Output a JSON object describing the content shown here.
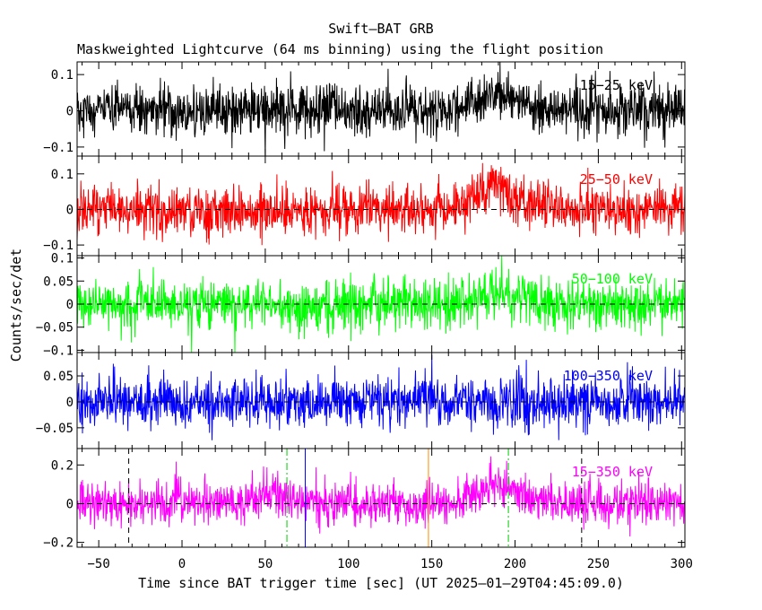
{
  "title": "Swift–BAT GRB",
  "subtitle": "Maskweighted Lightcurve (64 ms binning) using the flight position",
  "chart_data": {
    "type": "line",
    "xlabel": "Time since BAT trigger time [sec] (UT 2025–01–29T04:45:09.0)",
    "ylabel": "Counts/sec/det",
    "xlim": [
      -63,
      302
    ],
    "x_ticks": [
      {
        "v": -50,
        "label": "−50"
      },
      {
        "v": 0,
        "label": "0"
      },
      {
        "v": 50,
        "label": "50"
      },
      {
        "v": 100,
        "label": "100"
      },
      {
        "v": 150,
        "label": "150"
      },
      {
        "v": 200,
        "label": "200"
      },
      {
        "v": 250,
        "label": "250"
      },
      {
        "v": 300,
        "label": "300"
      }
    ],
    "binning_s": 0.064,
    "panels": [
      {
        "band": "15−25 keV",
        "color": "#000000",
        "ylim": [
          -0.125,
          0.135
        ],
        "noise_sigma": 0.035,
        "baseline": 0,
        "zero_dashed": false,
        "y_ticks": [
          {
            "v": 0.1,
            "label": "0.1"
          },
          {
            "v": 0,
            "label": "0"
          },
          {
            "v": -0.1,
            "label": "−0.1"
          }
        ],
        "bumps": [
          {
            "center": 190,
            "width": 15,
            "amplitude": 0.04
          }
        ]
      },
      {
        "band": "25−50 keV",
        "color": "#ff0000",
        "ylim": [
          -0.13,
          0.15
        ],
        "noise_sigma": 0.035,
        "baseline": 0,
        "zero_dashed": true,
        "y_ticks": [
          {
            "v": 0.1,
            "label": "0.1"
          },
          {
            "v": 0,
            "label": "0"
          },
          {
            "v": -0.1,
            "label": "−0.1"
          }
        ],
        "bumps": [
          {
            "center": 186,
            "width": 9,
            "amplitude": 0.06
          },
          {
            "center": 205,
            "width": 15,
            "amplitude": 0.02
          }
        ]
      },
      {
        "band": "50−100 keV",
        "color": "#00ff00",
        "ylim": [
          -0.105,
          0.105
        ],
        "noise_sigma": 0.027,
        "baseline": 0,
        "zero_dashed": true,
        "y_ticks": [
          {
            "v": 0.1,
            "label": "0.1"
          },
          {
            "v": 0.05,
            "label": "0.05"
          },
          {
            "v": 0,
            "label": "0"
          },
          {
            "v": -0.05,
            "label": "−0.05"
          },
          {
            "v": -0.1,
            "label": "−0.1"
          }
        ],
        "bumps": [
          {
            "center": 188,
            "width": 12,
            "amplitude": 0.025
          }
        ]
      },
      {
        "band": "100−350 keV",
        "color": "#0000ff",
        "ylim": [
          -0.09,
          0.095
        ],
        "noise_sigma": 0.024,
        "baseline": 0,
        "zero_dashed": true,
        "y_ticks": [
          {
            "v": 0.05,
            "label": "0.05"
          },
          {
            "v": 0,
            "label": "0"
          },
          {
            "v": -0.05,
            "label": "−0.05"
          }
        ],
        "bumps": []
      },
      {
        "band": "15−350 keV",
        "color": "#ff00ff",
        "ylim": [
          -0.225,
          0.285
        ],
        "noise_sigma": 0.055,
        "baseline": 0,
        "zero_dashed": true,
        "y_ticks": [
          {
            "v": 0.2,
            "label": "0.2"
          },
          {
            "v": 0,
            "label": "0"
          },
          {
            "v": -0.2,
            "label": "−0.2"
          }
        ],
        "bumps": [
          {
            "center": 190,
            "width": 12,
            "amplitude": 0.11
          },
          {
            "center": 55,
            "width": 8,
            "amplitude": 0.05
          }
        ],
        "markers": [
          {
            "x": -32,
            "color": "#000000",
            "style": "dashed"
          },
          {
            "x": 240,
            "color": "#000000",
            "style": "dashed"
          },
          {
            "x": 63,
            "color": "#00cc00",
            "style": "dashdot"
          },
          {
            "x": 196,
            "color": "#00cc00",
            "style": "dashdot"
          },
          {
            "x": 74,
            "color": "#0000ff",
            "style": "solid"
          },
          {
            "x": 148,
            "color": "#ff8c00",
            "style": "solid"
          }
        ]
      }
    ]
  }
}
